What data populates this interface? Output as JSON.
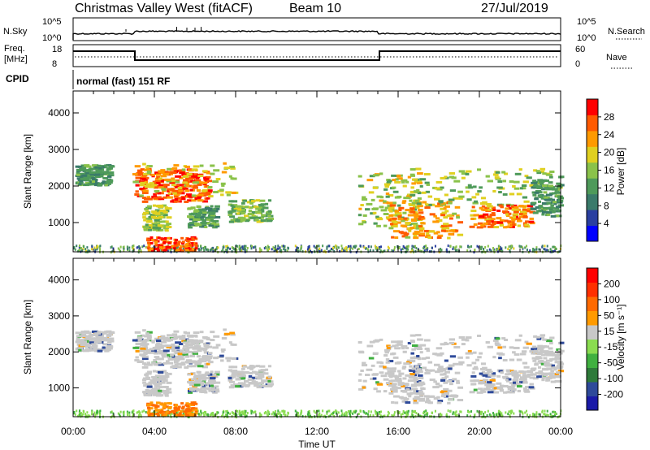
{
  "header": {
    "station": "Christmas Valley West (fitACF)",
    "beam": "Beam 10",
    "date": "27/Jul/2019"
  },
  "noise_panel": {
    "left_label": "N.Sky",
    "right_label": "N.Search",
    "left_ticks": [
      "10^5",
      "10^0"
    ],
    "right_ticks": [
      "10^5",
      "10^0"
    ]
  },
  "freq_panel": {
    "left_label_1": "Freq.",
    "left_label_2": "[MHz]",
    "left_ticks": [
      "18",
      "8"
    ],
    "right_label": "Nave",
    "right_ticks": [
      "60",
      "0"
    ]
  },
  "cpid": {
    "label": "CPID",
    "program": "normal (fast) 151 RF"
  },
  "colors": {
    "power_scale": [
      "#0000ff",
      "#2a3fa0",
      "#3a7a6a",
      "#4e9a5a",
      "#8ac24a",
      "#e0d020",
      "#ff9a00",
      "#ff5a00",
      "#ff0000"
    ],
    "velocity_scale": [
      "#1a1aa8",
      "#2e4a9a",
      "#2e7a3a",
      "#40b040",
      "#8adc50",
      "#c8c8c8",
      "#ff9a00",
      "#ff6a00",
      "#ff3000",
      "#ff0000"
    ],
    "scatter_gray": "#c8c8c8"
  },
  "chart_data": [
    {
      "type": "heatmap",
      "title": "",
      "ylabel": "Slant Range [km]",
      "xlabel": "",
      "ylim": [
        200,
        4600
      ],
      "xlim": [
        "00:00",
        "24:00"
      ],
      "y_ticks": [
        "1000",
        "2000",
        "3000",
        "4000"
      ],
      "colorbar": {
        "label": "Power [dB]",
        "ticks": [
          "4",
          "8",
          "12",
          "16",
          "20",
          "24",
          "28"
        ],
        "range": [
          0,
          30
        ]
      }
    },
    {
      "type": "heatmap",
      "title": "",
      "ylabel": "Slant Range [km]",
      "xlabel": "Time UT",
      "ylim": [
        200,
        4600
      ],
      "xlim": [
        "00:00",
        "24:00"
      ],
      "x_ticks": [
        "00:00",
        "04:00",
        "08:00",
        "12:00",
        "16:00",
        "20:00",
        "00:00"
      ],
      "y_ticks": [
        "1000",
        "2000",
        "3000",
        "4000"
      ],
      "colorbar": {
        "label": "Velocity [m s⁻¹]",
        "ticks": [
          "200",
          "100",
          "50",
          "15",
          "-15",
          "-50",
          "-100",
          "-200"
        ],
        "range": [
          -250,
          250
        ]
      }
    }
  ]
}
